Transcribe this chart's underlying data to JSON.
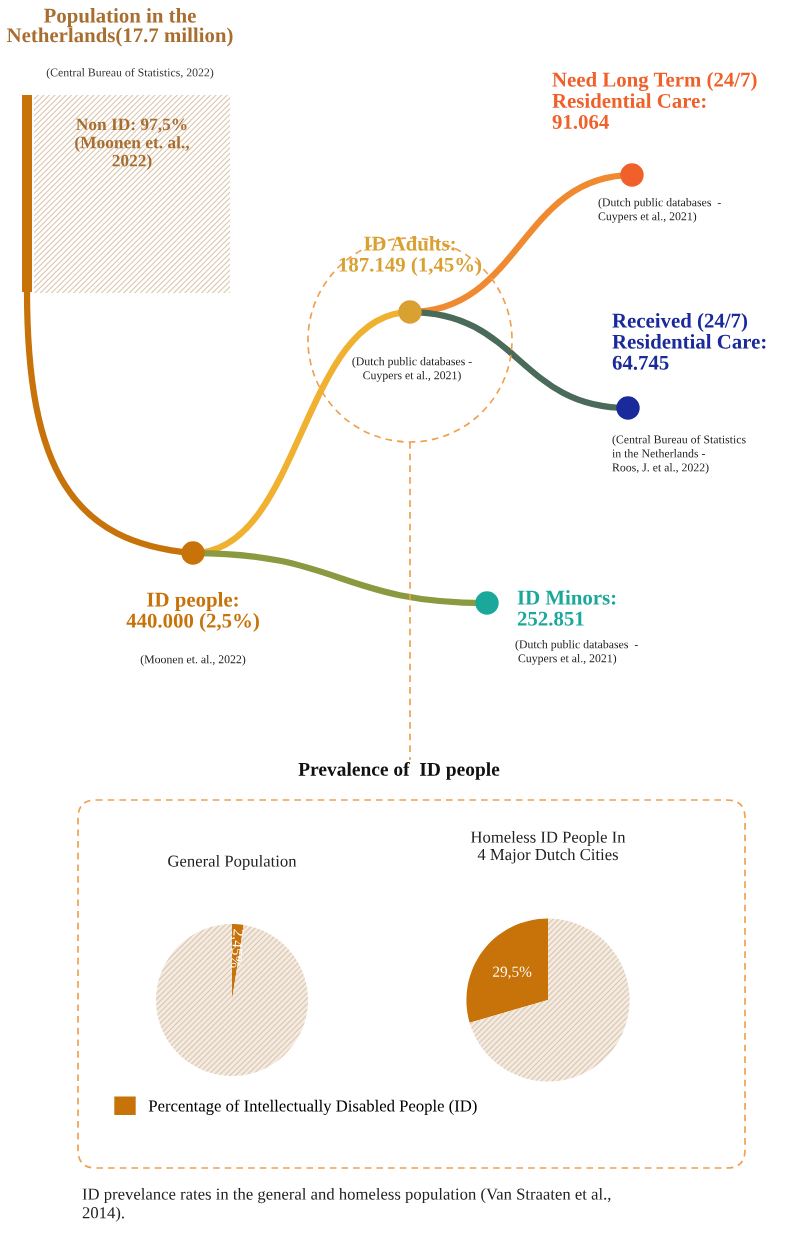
{
  "chart_data": [
    {
      "type": "other",
      "title": "Population in the\nNetherlands(17.7 million)",
      "subtitle": "(Central Bureau of Statistics, 2022)",
      "categories": [
        "Non ID: 97,5%\n(Moonen et. al.,\n2022)",
        "ID people:\n440.000 (2,5%)",
        "ID Adults:\n187.149 (1,45%)",
        "ID Minors:\n252.851",
        "Need Long Term (24/7)\nResidential Care:\n91.064",
        "Received (24/7)\nResidential Care:\n64.745"
      ],
      "colors": [
        "#c8720a",
        "#c8720a",
        "#d9a032",
        "#1aa89a",
        "#f0602a",
        "#1a2a9a"
      ],
      "annotations": [
        "(Moonen et. al., 2022)",
        "(Dutch public databases -\nCuypers et al., 2021)",
        "(Dutch public databases  -\nCuypers et al., 2021)",
        "(Dutch public databases  -\n Cuypers et al., 2021)",
        "(Central Bureau of Statistics\nin the Netherlands -\nRoos, J. et al., 2022)"
      ]
    },
    {
      "type": "pie",
      "title": "General Population",
      "subtitle": "Prevalence of  ID people",
      "categories": [
        "Percentage of Intellectually Disabled People (ID)",
        null
      ],
      "values": [
        2.45,
        97.55
      ],
      "colors": [
        "#c8720a",
        "#f3ebe1"
      ],
      "value_labels": [
        "2,45%",
        null
      ],
      "legend": "bottom"
    },
    {
      "type": "pie",
      "title": "Homeless ID People In\n4 Major Dutch Cities",
      "categories": [
        null,
        null
      ],
      "values": [
        29.5,
        70.5
      ],
      "colors": [
        "#c8720a",
        "#f3ebe1"
      ],
      "value_labels": [
        "29,5%",
        null
      ],
      "annotations": [
        "ID prevelance rates in the general and homeless population (Van Straaten et al.,\n2014)."
      ]
    }
  ]
}
